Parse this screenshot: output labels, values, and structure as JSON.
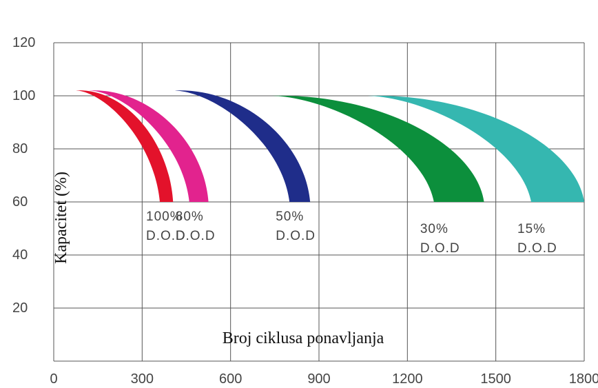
{
  "chart_data": {
    "type": "area",
    "title": "",
    "xlabel": "Broj ciklusa ponavljanja",
    "ylabel": "Kapacitet (%)",
    "xlim": [
      0,
      1800
    ],
    "ylim": [
      0,
      120
    ],
    "x_ticks": [
      "0",
      "300",
      "600",
      "900",
      "1200",
      "1500",
      "1800"
    ],
    "y_ticks": [
      "20",
      "40",
      "60",
      "80",
      "100",
      "120"
    ],
    "grid": true,
    "series": [
      {
        "pct": "100%",
        "unit": "D.O.D",
        "color": "#e3122b",
        "start_x": 75,
        "peak_y": 102,
        "lower_end_x": 360,
        "upper_end_x": 405
      },
      {
        "pct": "80%",
        "unit": "D.O.D",
        "color": "#e2238e",
        "start_x": 120,
        "peak_y": 102,
        "lower_end_x": 460,
        "upper_end_x": 525
      },
      {
        "pct": "50%",
        "unit": "D.O.D",
        "color": "#1f2d8a",
        "start_x": 410,
        "peak_y": 102,
        "lower_end_x": 800,
        "upper_end_x": 870
      },
      {
        "pct": "30%",
        "unit": "D.O.D",
        "color": "#0c8f3c",
        "start_x": 740,
        "peak_y": 100,
        "lower_end_x": 1290,
        "upper_end_x": 1460
      },
      {
        "pct": "15%",
        "unit": "D.O.D",
        "color": "#35b7b0",
        "start_x": 1065,
        "peak_y": 100,
        "lower_end_x": 1620,
        "upper_end_x": 1800
      }
    ]
  }
}
